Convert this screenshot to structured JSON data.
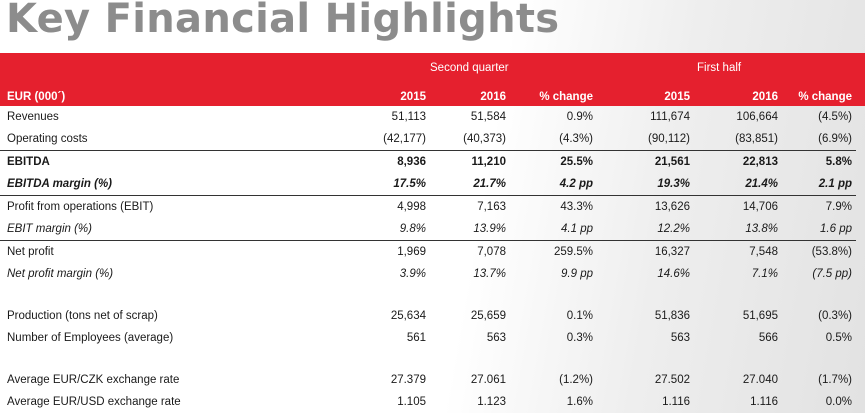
{
  "title": "Key Financial Highlights",
  "groups": {
    "q2": "Second quarter",
    "h1": "First half"
  },
  "header": {
    "label": "EUR (000´)",
    "cols": [
      "2015",
      "2016",
      "% change",
      "2015",
      "2016",
      "% change"
    ]
  },
  "rows": [
    {
      "label": "Revenues",
      "values": [
        "51,113",
        "51,584",
        "0.9%",
        "111,674",
        "106,664",
        "(4.5%)"
      ],
      "style": ""
    },
    {
      "label": "Operating costs",
      "values": [
        "(42,177)",
        "(40,373)",
        "(4.3%)",
        "(90,112)",
        "(83,851)",
        "(6.9%)"
      ],
      "style": ""
    },
    {
      "label": "EBITDA",
      "values": [
        "8,936",
        "11,210",
        "25.5%",
        "21,561",
        "22,813",
        "5.8%"
      ],
      "style": "bold tline"
    },
    {
      "label": "EBITDA margin (%)",
      "values": [
        "17.5%",
        "21.7%",
        "4.2 pp",
        "19.3%",
        "21.4%",
        "2.1 pp"
      ],
      "style": "bold ital bline"
    },
    {
      "label": "Profit from operations (EBIT)",
      "values": [
        "4,998",
        "7,163",
        "43.3%",
        "13,626",
        "14,706",
        "7.9%"
      ],
      "style": ""
    },
    {
      "label": "EBIT margin (%)",
      "values": [
        "9.8%",
        "13.9%",
        "4.1 pp",
        "12.2%",
        "13.8%",
        "1.6 pp"
      ],
      "style": "ital bline"
    },
    {
      "label": "Net profit",
      "values": [
        "1,969",
        "7,078",
        "259.5%",
        "16,327",
        "7,548",
        "(53.8%)"
      ],
      "style": ""
    },
    {
      "label": "Net profit margin (%)",
      "values": [
        "3.9%",
        "13.7%",
        "9.9 pp",
        "14.6%",
        "7.1%",
        "(7.5 pp)"
      ],
      "style": "ital"
    },
    {
      "spacer": true
    },
    {
      "label": "Production (tons net of scrap)",
      "values": [
        "25,634",
        "25,659",
        "0.1%",
        "51,836",
        "51,695",
        "(0.3%)"
      ],
      "style": ""
    },
    {
      "label": "Number of Employees (average)",
      "values": [
        "561",
        "563",
        "0.3%",
        "563",
        "566",
        "0.5%"
      ],
      "style": ""
    },
    {
      "spacer": true
    },
    {
      "label": "Average EUR/CZK exchange rate",
      "values": [
        "27.379",
        "27.061",
        "(1.2%)",
        "27.502",
        "27.040",
        "(1.7%)"
      ],
      "style": ""
    },
    {
      "label": "Average EUR/USD exchange rate",
      "values": [
        "1.105",
        "1.123",
        "1.6%",
        "1.116",
        "1.116",
        "0.0%"
      ],
      "style": ""
    }
  ]
}
